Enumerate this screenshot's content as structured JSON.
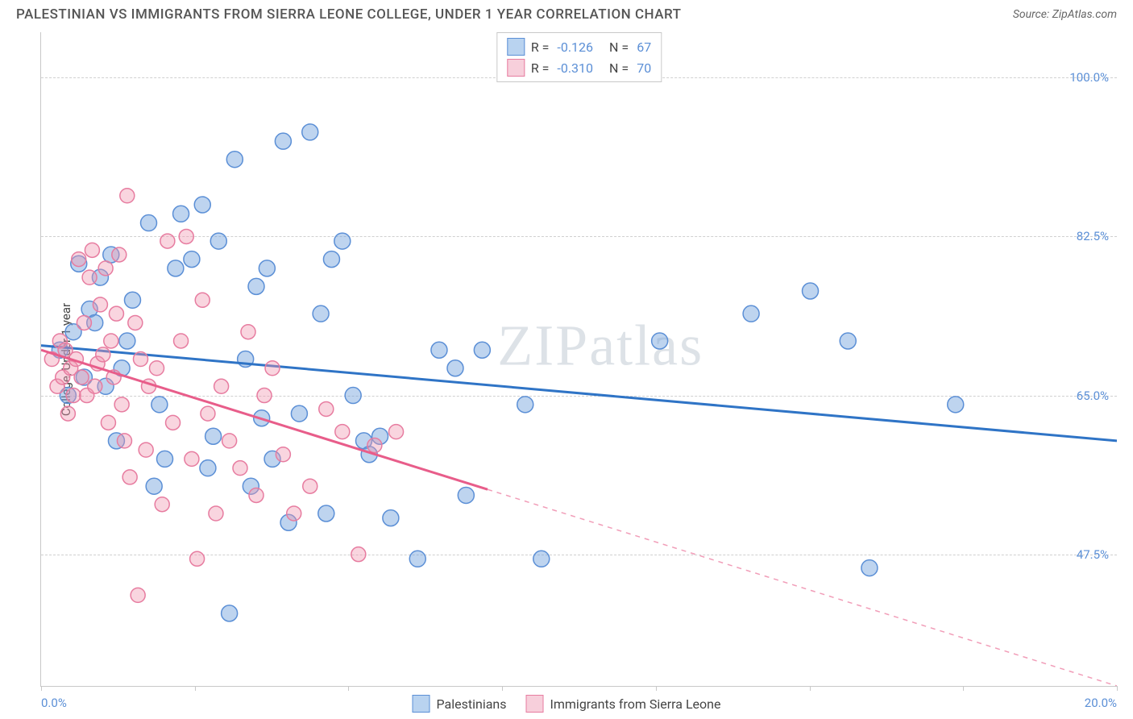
{
  "header": {
    "title": "PALESTINIAN VS IMMIGRANTS FROM SIERRA LEONE COLLEGE, UNDER 1 YEAR CORRELATION CHART",
    "source": "Source: ZipAtlas.com"
  },
  "y_axis_label": "College, Under 1 year",
  "watermark": "ZIPatlas",
  "chart": {
    "type": "scatter",
    "background_color": "#ffffff",
    "grid_color": "#d0d0d0",
    "axis_color": "#c8c8c8",
    "tick_label_color": "#5b8fd6",
    "xlim": [
      0,
      20
    ],
    "ylim": [
      33,
      105
    ],
    "y_ticks": [
      {
        "v": 100.0,
        "label": "100.0%"
      },
      {
        "v": 82.5,
        "label": "82.5%"
      },
      {
        "v": 65.0,
        "label": "65.0%"
      },
      {
        "v": 47.5,
        "label": "47.5%"
      }
    ],
    "x_ticks": [
      0,
      2.857,
      5.714,
      8.571,
      11.429,
      14.286,
      17.143,
      20
    ],
    "x_tick_labels": {
      "0": "0.0%",
      "20": "20.0%"
    },
    "series": [
      {
        "id": "blue",
        "name": "Palestinians",
        "marker_color_fill": "rgba(110,160,220,0.45)",
        "marker_color_stroke": "#5b8fd6",
        "marker_radius": 10,
        "line_color": "#2f74c6",
        "line_width": 3,
        "R": "-0.126",
        "N": "67",
        "trend": {
          "x1": 0,
          "y1": 70.5,
          "x2": 20,
          "y2": 60.0,
          "solid_until_x": 20
        },
        "points": [
          [
            0.35,
            70
          ],
          [
            0.5,
            65
          ],
          [
            0.6,
            72
          ],
          [
            0.7,
            79.5
          ],
          [
            0.8,
            67
          ],
          [
            0.9,
            74.5
          ],
          [
            1.0,
            73
          ],
          [
            1.1,
            78
          ],
          [
            1.2,
            66
          ],
          [
            1.3,
            80.5
          ],
          [
            1.4,
            60
          ],
          [
            1.5,
            68
          ],
          [
            1.6,
            71
          ],
          [
            1.7,
            75.5
          ],
          [
            2.0,
            84
          ],
          [
            2.1,
            55
          ],
          [
            2.2,
            64
          ],
          [
            2.3,
            58
          ],
          [
            2.5,
            79
          ],
          [
            2.6,
            85
          ],
          [
            2.8,
            80
          ],
          [
            3.0,
            86
          ],
          [
            3.1,
            57
          ],
          [
            3.2,
            60.5
          ],
          [
            3.3,
            82
          ],
          [
            3.5,
            41
          ],
          [
            3.6,
            91
          ],
          [
            3.8,
            69
          ],
          [
            3.9,
            55
          ],
          [
            4.0,
            77
          ],
          [
            4.1,
            62.5
          ],
          [
            4.2,
            79
          ],
          [
            4.3,
            58
          ],
          [
            4.5,
            93
          ],
          [
            4.6,
            51
          ],
          [
            4.8,
            63
          ],
          [
            5.0,
            94
          ],
          [
            5.2,
            74
          ],
          [
            5.3,
            52
          ],
          [
            5.4,
            80
          ],
          [
            5.6,
            82
          ],
          [
            5.8,
            65
          ],
          [
            6.0,
            60
          ],
          [
            6.1,
            58.5
          ],
          [
            6.3,
            60.5
          ],
          [
            6.5,
            51.5
          ],
          [
            7.0,
            47
          ],
          [
            7.4,
            70
          ],
          [
            7.7,
            68
          ],
          [
            7.9,
            54
          ],
          [
            8.2,
            70
          ],
          [
            9.0,
            64
          ],
          [
            9.3,
            47
          ],
          [
            11.5,
            71
          ],
          [
            13.2,
            74
          ],
          [
            14.3,
            76.5
          ],
          [
            15.0,
            71
          ],
          [
            15.4,
            46
          ],
          [
            17.0,
            64
          ]
        ]
      },
      {
        "id": "pink",
        "name": "Immigrants from Sierra Leone",
        "marker_color_fill": "rgba(240,150,175,0.40)",
        "marker_color_stroke": "#e77ca0",
        "marker_radius": 9,
        "line_color": "#e85d8a",
        "line_width": 3,
        "R": "-0.310",
        "N": "70",
        "trend": {
          "x1": 0,
          "y1": 70.0,
          "x2": 20,
          "y2": 33.0,
          "solid_until_x": 8.3
        },
        "points": [
          [
            0.2,
            69
          ],
          [
            0.3,
            66
          ],
          [
            0.35,
            71
          ],
          [
            0.4,
            67
          ],
          [
            0.45,
            70
          ],
          [
            0.5,
            63
          ],
          [
            0.55,
            68
          ],
          [
            0.6,
            65
          ],
          [
            0.65,
            69
          ],
          [
            0.7,
            80
          ],
          [
            0.75,
            67
          ],
          [
            0.8,
            73
          ],
          [
            0.85,
            65
          ],
          [
            0.9,
            78
          ],
          [
            0.95,
            81
          ],
          [
            1.0,
            66
          ],
          [
            1.05,
            68.5
          ],
          [
            1.1,
            75
          ],
          [
            1.15,
            69.5
          ],
          [
            1.2,
            79
          ],
          [
            1.25,
            62
          ],
          [
            1.3,
            71
          ],
          [
            1.35,
            67
          ],
          [
            1.4,
            74
          ],
          [
            1.45,
            80.5
          ],
          [
            1.5,
            64
          ],
          [
            1.55,
            60
          ],
          [
            1.6,
            87
          ],
          [
            1.65,
            56
          ],
          [
            1.75,
            73
          ],
          [
            1.8,
            43
          ],
          [
            1.85,
            69
          ],
          [
            1.95,
            59
          ],
          [
            2.0,
            66
          ],
          [
            2.15,
            68
          ],
          [
            2.25,
            53
          ],
          [
            2.35,
            82
          ],
          [
            2.45,
            62
          ],
          [
            2.6,
            71
          ],
          [
            2.7,
            82.5
          ],
          [
            2.8,
            58
          ],
          [
            2.9,
            47
          ],
          [
            3.0,
            75.5
          ],
          [
            3.1,
            63
          ],
          [
            3.25,
            52
          ],
          [
            3.35,
            66
          ],
          [
            3.5,
            60
          ],
          [
            3.7,
            57
          ],
          [
            3.85,
            72
          ],
          [
            4.0,
            54
          ],
          [
            4.15,
            65
          ],
          [
            4.3,
            68
          ],
          [
            4.5,
            58.5
          ],
          [
            4.7,
            52
          ],
          [
            5.0,
            55
          ],
          [
            5.3,
            63.5
          ],
          [
            5.6,
            61
          ],
          [
            5.9,
            47.5
          ],
          [
            6.2,
            59.5
          ],
          [
            6.6,
            61
          ]
        ]
      }
    ]
  },
  "legend_top": {
    "swatch_blue_fill": "#b9d3f0",
    "swatch_blue_border": "#5b8fd6",
    "swatch_pink_fill": "#f7cfdb",
    "swatch_pink_border": "#e77ca0"
  },
  "legend_bottom": {
    "items": [
      {
        "swatch_fill": "#b9d3f0",
        "swatch_border": "#5b8fd6",
        "label": "Palestinians"
      },
      {
        "swatch_fill": "#f7cfdb",
        "swatch_border": "#e77ca0",
        "label": "Immigrants from Sierra Leone"
      }
    ]
  }
}
